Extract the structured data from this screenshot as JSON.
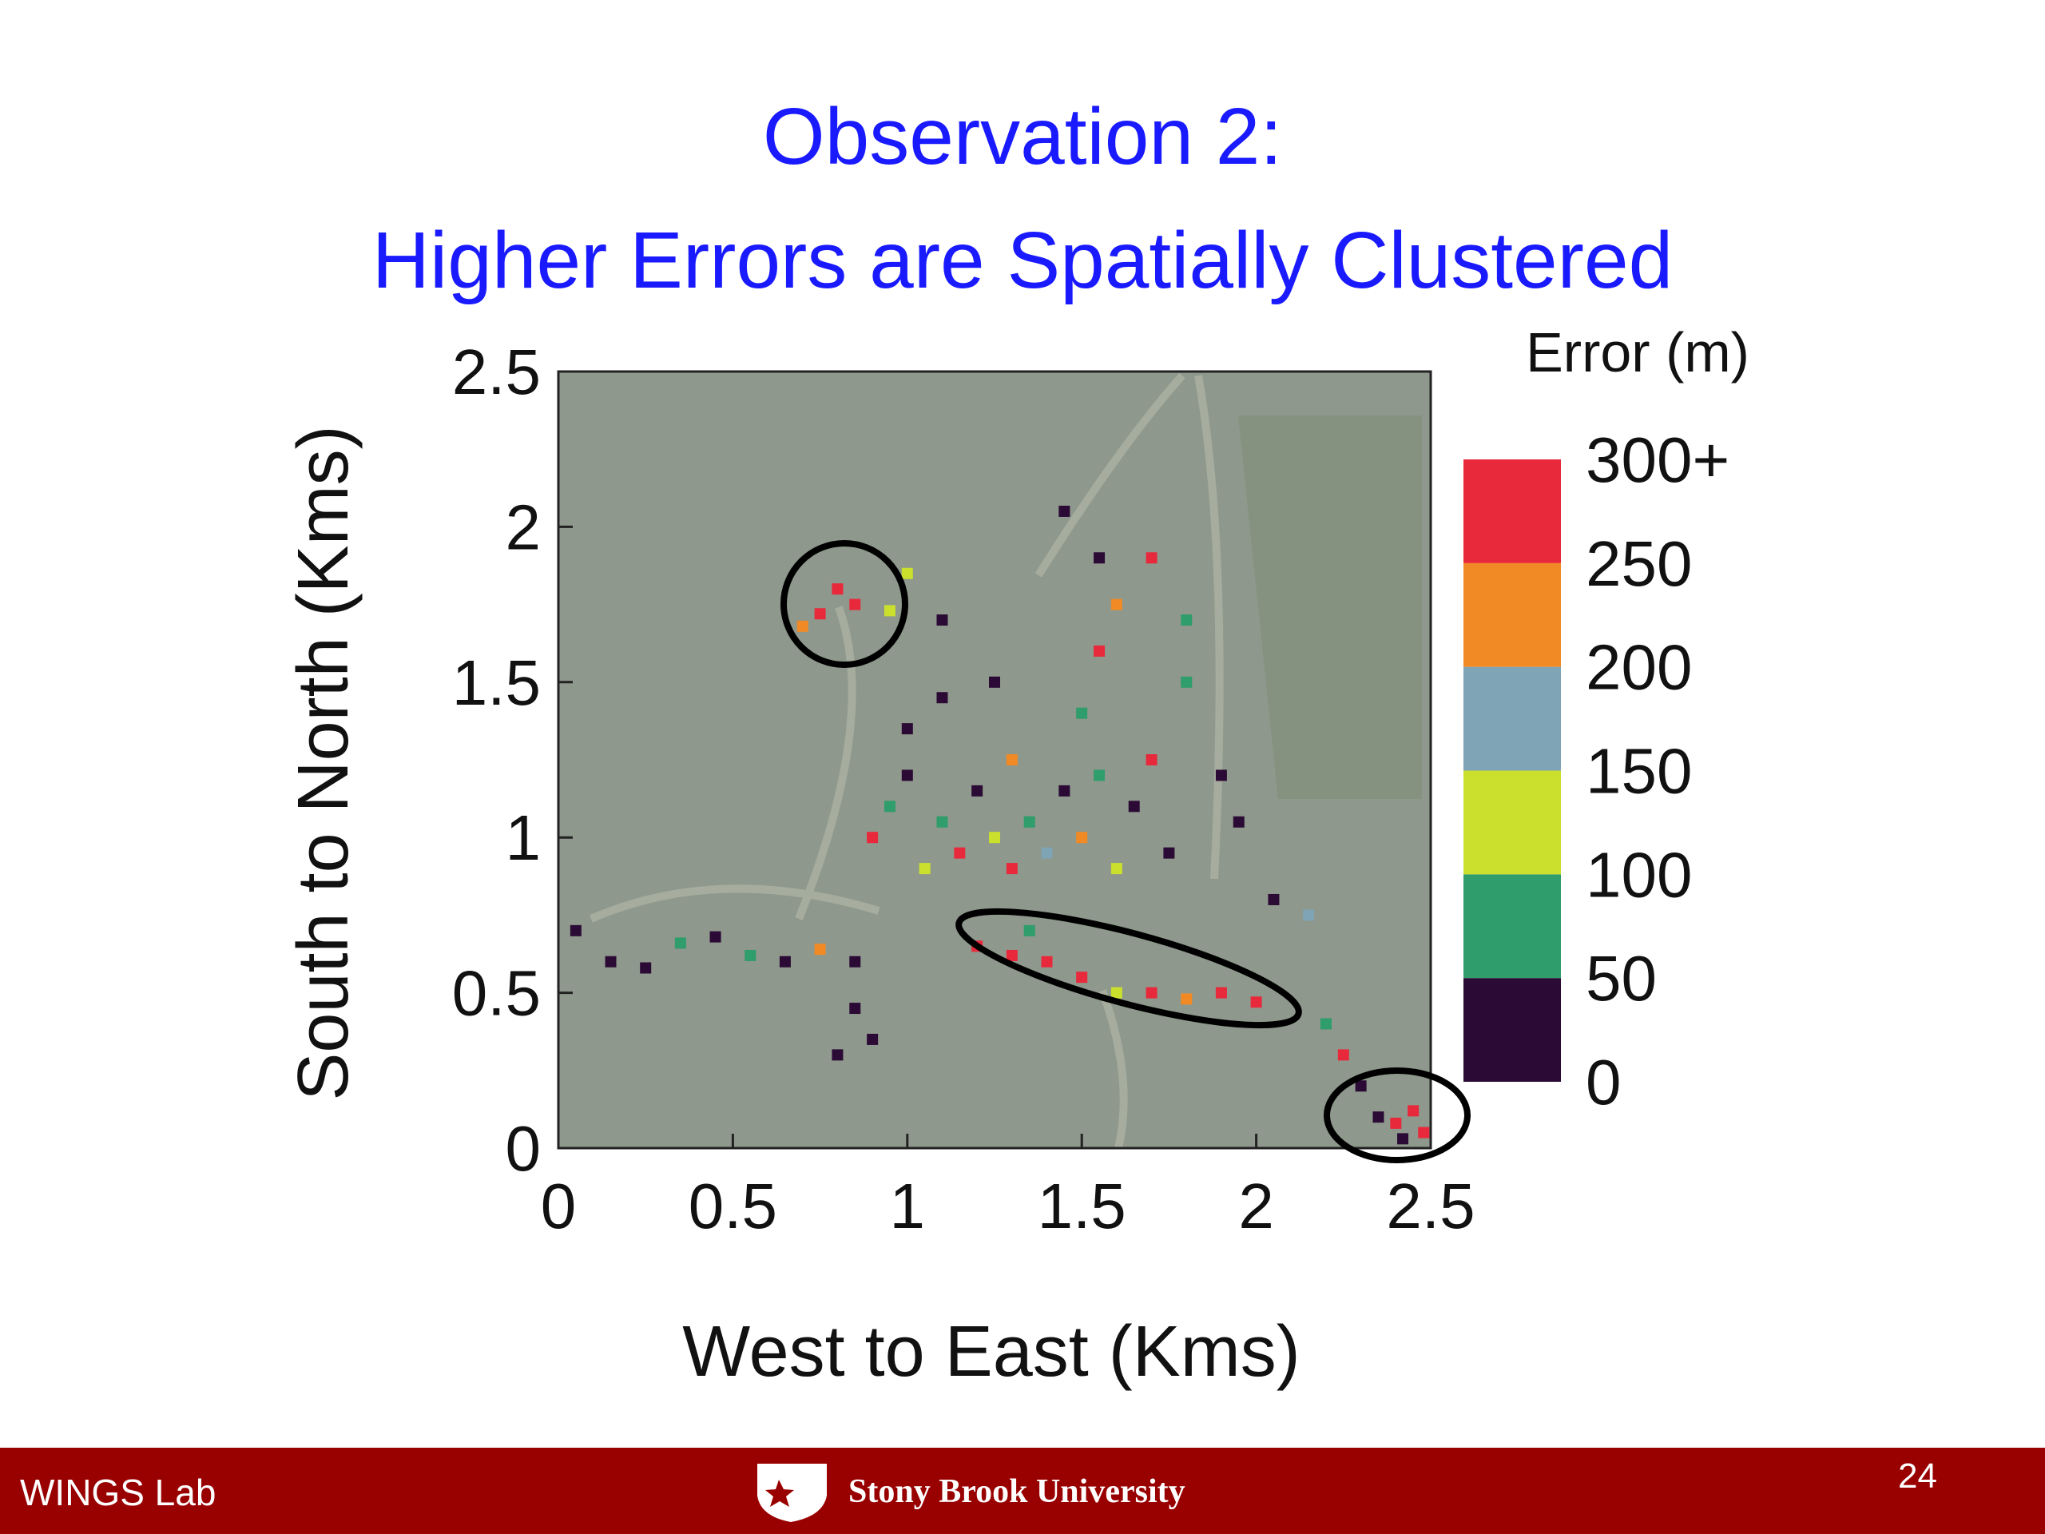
{
  "header": {
    "title_line1": "Observation 2:",
    "title_line2": "Higher Errors are Spatially Clustered"
  },
  "chart_data": {
    "type": "scatter",
    "xlabel": "West to East (Kms)",
    "ylabel": "South to North (Kms)",
    "xlim": [
      0,
      2.5
    ],
    "ylim": [
      0,
      2.5
    ],
    "xticks": [
      0,
      0.5,
      1,
      1.5,
      2,
      2.5
    ],
    "yticks": [
      0,
      0.5,
      1,
      1.5,
      2,
      2.5
    ],
    "x": [
      0.05,
      0.15,
      0.25,
      0.35,
      0.45,
      0.55,
      0.65,
      0.75,
      0.85,
      0.85,
      0.9,
      0.8,
      0.9,
      0.95,
      1.0,
      1.05,
      1.1,
      1.15,
      1.2,
      1.25,
      1.3,
      1.3,
      1.35,
      1.4,
      1.45,
      1.5,
      1.55,
      1.6,
      1.65,
      1.7,
      1.75,
      1.0,
      1.1,
      1.25,
      1.5,
      1.55,
      1.6,
      1.55,
      1.45,
      1.7,
      1.8,
      1.8,
      1.9,
      1.95,
      1.0,
      1.1,
      0.75,
      0.8,
      0.85,
      0.7,
      0.95,
      1.2,
      1.3,
      1.4,
      1.5,
      1.6,
      1.7,
      1.8,
      1.9,
      2.0,
      1.35,
      2.05,
      2.15,
      2.2,
      2.25,
      2.3,
      2.35,
      2.4,
      2.45,
      2.42,
      2.48
    ],
    "y": [
      0.7,
      0.6,
      0.58,
      0.66,
      0.68,
      0.62,
      0.6,
      0.64,
      0.6,
      0.45,
      0.35,
      0.3,
      1.0,
      1.1,
      1.2,
      0.9,
      1.05,
      0.95,
      1.15,
      1.0,
      0.9,
      1.25,
      1.05,
      0.95,
      1.15,
      1.0,
      1.2,
      0.9,
      1.1,
      1.25,
      0.95,
      1.35,
      1.45,
      1.5,
      1.4,
      1.6,
      1.75,
      1.9,
      2.05,
      1.9,
      1.7,
      1.5,
      1.2,
      1.05,
      1.85,
      1.7,
      1.72,
      1.8,
      1.75,
      1.68,
      1.73,
      0.65,
      0.62,
      0.6,
      0.55,
      0.5,
      0.5,
      0.48,
      0.5,
      0.47,
      0.7,
      0.8,
      0.75,
      0.4,
      0.3,
      0.2,
      0.1,
      0.08,
      0.12,
      0.03,
      0.05
    ],
    "values": [
      20,
      30,
      10,
      60,
      40,
      70,
      20,
      210,
      30,
      15,
      25,
      10,
      270,
      60,
      20,
      110,
      80,
      260,
      40,
      130,
      290,
      220,
      75,
      160,
      30,
      240,
      55,
      120,
      15,
      280,
      45,
      10,
      25,
      15,
      70,
      260,
      200,
      30,
      20,
      250,
      90,
      60,
      20,
      30,
      100,
      40,
      280,
      250,
      270,
      220,
      120,
      270,
      290,
      300,
      260,
      120,
      280,
      240,
      290,
      270,
      70,
      30,
      150,
      60,
      270,
      40,
      10,
      280,
      300,
      20,
      260
    ],
    "colorbar": {
      "title": "Error (m)",
      "ticks": [
        0,
        50,
        100,
        150,
        200,
        250,
        {
          "value": 300,
          "label": "300+"
        }
      ],
      "colors": [
        "#2b0b35",
        "#2f9d6c",
        "#cbe02c",
        "#7ea4b6",
        "#f18a25",
        "#e8293c"
      ]
    }
  },
  "footer": {
    "left": "WINGS Lab",
    "logo_text": "Stony Brook University",
    "page": "24"
  }
}
